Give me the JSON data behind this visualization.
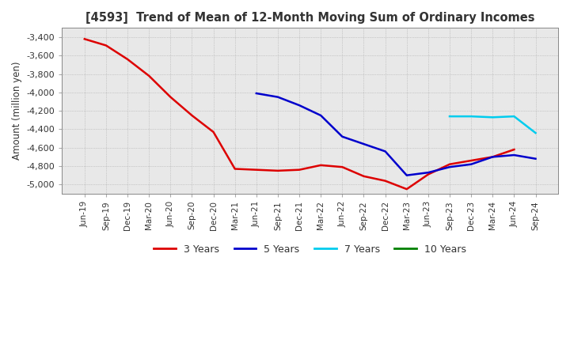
{
  "title": "[4593]  Trend of Mean of 12-Month Moving Sum of Ordinary Incomes",
  "ylabel": "Amount (million yen)",
  "ylim": [
    -5100,
    -3300
  ],
  "yticks": [
    -5000,
    -4800,
    -4600,
    -4400,
    -4200,
    -4000,
    -3800,
    -3600,
    -3400
  ],
  "background_color": "#ffffff",
  "plot_bg_color": "#e8e8e8",
  "grid_color": "#aaaaaa",
  "title_color": "#404040",
  "x_labels": [
    "Jun-19",
    "Sep-19",
    "Dec-19",
    "Mar-20",
    "Jun-20",
    "Sep-20",
    "Dec-20",
    "Mar-21",
    "Jun-21",
    "Sep-21",
    "Dec-21",
    "Mar-22",
    "Jun-22",
    "Sep-22",
    "Dec-22",
    "Mar-23",
    "Jun-23",
    "Sep-23",
    "Dec-23",
    "Mar-24",
    "Jun-24",
    "Sep-24"
  ],
  "series": {
    "3 Years": {
      "color": "#dd0000",
      "values": [
        -3420,
        -3490,
        -3640,
        -3820,
        -4050,
        -4250,
        -4430,
        -4830,
        -4840,
        -4850,
        -4840,
        -4790,
        -4810,
        -4910,
        -4960,
        -5050,
        -4890,
        -4780,
        -4740,
        -4700,
        -4620,
        null
      ]
    },
    "5 Years": {
      "color": "#0000cc",
      "values": [
        null,
        null,
        null,
        null,
        null,
        null,
        null,
        null,
        -4010,
        -4050,
        -4140,
        -4250,
        -4480,
        -4560,
        -4640,
        -4900,
        -4870,
        -4810,
        -4780,
        -4700,
        -4680,
        -4720
      ]
    },
    "7 Years": {
      "color": "#00ccee",
      "values": [
        null,
        null,
        null,
        null,
        null,
        null,
        null,
        null,
        null,
        null,
        null,
        null,
        null,
        null,
        null,
        null,
        null,
        -4260,
        -4260,
        -4270,
        -4260,
        -4440
      ]
    },
    "10 Years": {
      "color": "#008000",
      "values": [
        null,
        null,
        null,
        null,
        null,
        null,
        null,
        null,
        null,
        null,
        null,
        null,
        null,
        null,
        null,
        null,
        null,
        null,
        null,
        null,
        null,
        null
      ]
    }
  }
}
